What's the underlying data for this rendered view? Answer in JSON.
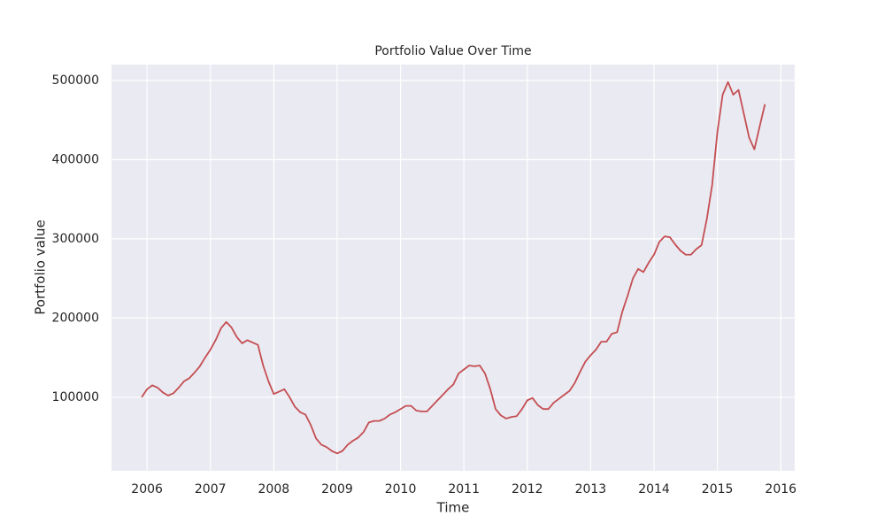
{
  "chart_data": {
    "type": "line",
    "title": "Portfolio Value Over Time",
    "x_label": "Time",
    "y_label": "Portfolio value",
    "x": [
      2005.917,
      2006.0,
      2006.083,
      2006.167,
      2006.25,
      2006.333,
      2006.417,
      2006.5,
      2006.583,
      2006.667,
      2006.75,
      2006.833,
      2006.917,
      2007.0,
      2007.083,
      2007.167,
      2007.25,
      2007.333,
      2007.417,
      2007.5,
      2007.583,
      2007.667,
      2007.75,
      2007.833,
      2007.917,
      2008.0,
      2008.083,
      2008.167,
      2008.25,
      2008.333,
      2008.417,
      2008.5,
      2008.583,
      2008.667,
      2008.75,
      2008.833,
      2008.917,
      2009.0,
      2009.083,
      2009.167,
      2009.25,
      2009.333,
      2009.417,
      2009.5,
      2009.583,
      2009.667,
      2009.75,
      2009.833,
      2009.917,
      2010.0,
      2010.083,
      2010.167,
      2010.25,
      2010.333,
      2010.417,
      2010.5,
      2010.583,
      2010.667,
      2010.75,
      2010.833,
      2010.917,
      2011.0,
      2011.083,
      2011.167,
      2011.25,
      2011.333,
      2011.417,
      2011.5,
      2011.583,
      2011.667,
      2011.75,
      2011.833,
      2011.917,
      2012.0,
      2012.083,
      2012.167,
      2012.25,
      2012.333,
      2012.417,
      2012.5,
      2012.583,
      2012.667,
      2012.75,
      2012.833,
      2012.917,
      2013.0,
      2013.083,
      2013.167,
      2013.25,
      2013.333,
      2013.417,
      2013.5,
      2013.583,
      2013.667,
      2013.75,
      2013.833,
      2013.917,
      2014.0,
      2014.083,
      2014.167,
      2014.25,
      2014.333,
      2014.417,
      2014.5,
      2014.583,
      2014.667,
      2014.75,
      2014.833,
      2014.917,
      2015.0,
      2015.083,
      2015.167,
      2015.25,
      2015.333,
      2015.417,
      2015.5,
      2015.583,
      2015.667,
      2015.75
    ],
    "series": [
      {
        "name": "Portfolio value",
        "color": "#c44e52",
        "values": [
          100000,
          110000,
          115000,
          112000,
          106000,
          102000,
          105000,
          112000,
          120000,
          124000,
          131000,
          139000,
          150000,
          160000,
          172000,
          187000,
          195000,
          188000,
          176000,
          168000,
          172000,
          169000,
          166000,
          140000,
          120000,
          104000,
          107000,
          110000,
          100000,
          88000,
          81000,
          78000,
          65000,
          48000,
          40000,
          37000,
          32000,
          29000,
          32000,
          40000,
          45000,
          49000,
          56000,
          68000,
          70000,
          70000,
          73000,
          78000,
          81000,
          85000,
          89000,
          89000,
          83000,
          82000,
          82000,
          89000,
          96000,
          103000,
          110000,
          116000,
          130000,
          135000,
          140000,
          139000,
          140000,
          130000,
          110000,
          85000,
          77000,
          73000,
          75000,
          76000,
          85000,
          96000,
          99000,
          90000,
          85000,
          85000,
          93000,
          98000,
          103000,
          108000,
          118000,
          132000,
          145000,
          153000,
          160000,
          170000,
          170000,
          180000,
          182000,
          208000,
          228000,
          250000,
          262000,
          258000,
          270000,
          280000,
          296000,
          303000,
          302000,
          293000,
          285000,
          280000,
          280000,
          287000,
          292000,
          325000,
          368000,
          435000,
          482000,
          498000,
          482000,
          488000,
          458000,
          428000,
          413000,
          442000,
          470000
        ]
      }
    ],
    "xlim": [
      2005.44,
      2016.22
    ],
    "xticks": [
      2006,
      2007,
      2008,
      2009,
      2010,
      2011,
      2012,
      2013,
      2014,
      2015,
      2016
    ],
    "ylim": [
      7000,
      520000
    ],
    "yticks": [
      100000,
      200000,
      300000,
      400000,
      500000
    ],
    "grid": true
  }
}
